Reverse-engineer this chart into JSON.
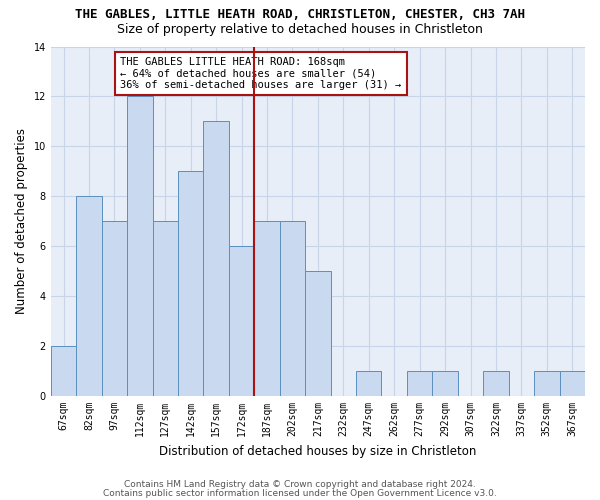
{
  "title": "THE GABLES, LITTLE HEATH ROAD, CHRISTLETON, CHESTER, CH3 7AH",
  "subtitle": "Size of property relative to detached houses in Christleton",
  "xlabel": "Distribution of detached houses by size in Christleton",
  "ylabel": "Number of detached properties",
  "categories": [
    "67sqm",
    "82sqm",
    "97sqm",
    "112sqm",
    "127sqm",
    "142sqm",
    "157sqm",
    "172sqm",
    "187sqm",
    "202sqm",
    "217sqm",
    "232sqm",
    "247sqm",
    "262sqm",
    "277sqm",
    "292sqm",
    "307sqm",
    "322sqm",
    "337sqm",
    "352sqm",
    "367sqm"
  ],
  "values": [
    2,
    8,
    7,
    12,
    7,
    9,
    11,
    6,
    7,
    7,
    5,
    0,
    1,
    0,
    1,
    1,
    0,
    1,
    0,
    1,
    1
  ],
  "bar_color": "#c9d9f0",
  "bar_edge_color": "#5a8fbf",
  "vline_index": 7,
  "vline_color": "#aa1111",
  "annotation_text": "THE GABLES LITTLE HEATH ROAD: 168sqm\n← 64% of detached houses are smaller (54)\n36% of semi-detached houses are larger (31) →",
  "annotation_box_color": "#ffffff",
  "annotation_box_edge_color": "#aa1111",
  "ylim": [
    0,
    14
  ],
  "yticks": [
    0,
    2,
    4,
    6,
    8,
    10,
    12,
    14
  ],
  "grid_color": "#c8d4e8",
  "background_color": "#e8eef8",
  "footer_line1": "Contains HM Land Registry data © Crown copyright and database right 2024.",
  "footer_line2": "Contains public sector information licensed under the Open Government Licence v3.0.",
  "title_fontsize": 9,
  "subtitle_fontsize": 9,
  "xlabel_fontsize": 8.5,
  "ylabel_fontsize": 8.5,
  "tick_fontsize": 7,
  "annotation_fontsize": 7.5,
  "footer_fontsize": 6.5
}
